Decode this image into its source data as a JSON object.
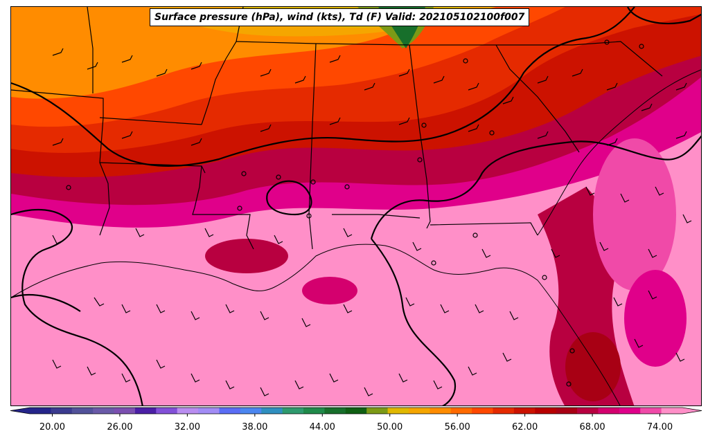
{
  "title": "Surface pressure (hPa), wind (kts), Td (F) Valid: 202105102100f007",
  "colorbar": {
    "tick_labels": [
      "20.00",
      "26.00",
      "32.00",
      "38.00",
      "44.00",
      "50.00",
      "56.00",
      "62.00",
      "68.00",
      "74.00"
    ],
    "tick_values": [
      20,
      26,
      32,
      38,
      44,
      50,
      56,
      62,
      68,
      74
    ],
    "range": [
      18,
      76
    ],
    "extend": "both",
    "colors": [
      "#25258a",
      "#3b3b8f",
      "#52529a",
      "#6a5aa8",
      "#7b4fb0",
      "#4b1fa6",
      "#8250d8",
      "#b98df0",
      "#a28cf5",
      "#5a6df5",
      "#4b86f0",
      "#2f8fbf",
      "#2e9a6e",
      "#1f8a4a",
      "#176f2b",
      "#0f5f13",
      "#7c9a16",
      "#e0b800",
      "#f5a600",
      "#ff8c00",
      "#ff6a00",
      "#ff4800",
      "#e52a00",
      "#cc1200",
      "#b80000",
      "#a80014",
      "#b80040",
      "#d4006e",
      "#e0008a",
      "#f04aa8",
      "#ff8fc8"
    ]
  },
  "map": {
    "variables": [
      "Surface pressure (hPa)",
      "wind (kts)",
      "Td (F)"
    ],
    "valid": "202105102100f007"
  }
}
